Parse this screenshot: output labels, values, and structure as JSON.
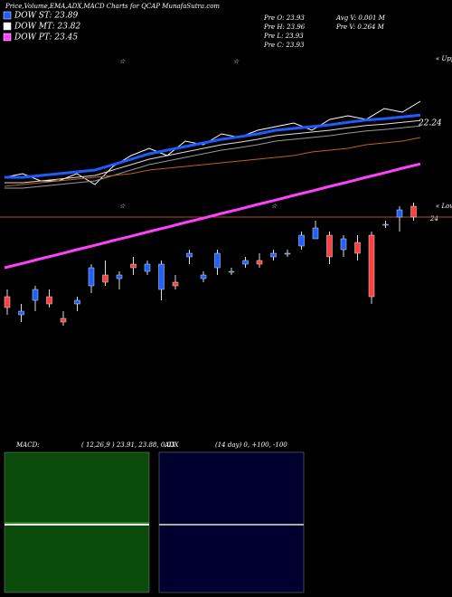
{
  "header": {
    "title": "Price,Volume,EMA,ADX,MACD Charts for QCAP MunafaSutra.com"
  },
  "legend": [
    {
      "label": "DOW ST: 23.89",
      "color": "#1e5cff"
    },
    {
      "label": "DOW MT: 23.82",
      "color": "#ffffff"
    },
    {
      "label": "DOW PT: 23.45",
      "color": "#ff40ff"
    }
  ],
  "quote": [
    "Pre  O: 23.93",
    "Pre  H: 23.96",
    "Pre  L: 23.93",
    "Pre  C: 23.93",
    "Avg V: 0.001  M",
    "Pre  V: 0.264  M"
  ],
  "chart_data": {
    "type": "candlestick",
    "ylim": [
      18,
      26
    ],
    "hline": 21.5,
    "hline_color": "#b05020",
    "labels": {
      "upper": "« Upper",
      "level": "22.24",
      "lower": "« Lower",
      "last": "24"
    },
    "lines": [
      {
        "color": "#ffffff",
        "width": 1,
        "values": [
          22.6,
          22.7,
          22.5,
          22.5,
          22.7,
          22.4,
          22.9,
          23.2,
          23.4,
          23.2,
          23.6,
          23.5,
          23.8,
          23.7,
          23.9,
          24.0,
          24.1,
          23.9,
          24.2,
          24.3,
          24.2,
          24.5,
          24.4,
          24.7
        ]
      },
      {
        "color": "#1e5cff",
        "width": 3,
        "values": [
          22.6,
          22.6,
          22.65,
          22.7,
          22.75,
          22.8,
          22.95,
          23.1,
          23.25,
          23.35,
          23.45,
          23.55,
          23.65,
          23.72,
          23.8,
          23.9,
          23.95,
          24.0,
          24.05,
          24.12,
          24.18,
          24.22,
          24.27,
          24.32
        ]
      },
      {
        "color": "#dddddd",
        "width": 1,
        "values": [
          22.45,
          22.45,
          22.5,
          22.55,
          22.6,
          22.65,
          22.8,
          22.95,
          23.1,
          23.2,
          23.3,
          23.4,
          23.5,
          23.57,
          23.65,
          23.75,
          23.8,
          23.85,
          23.9,
          23.97,
          24.03,
          24.07,
          24.12,
          24.17
        ]
      },
      {
        "color": "#999999",
        "width": 1,
        "values": [
          22.3,
          22.3,
          22.35,
          22.4,
          22.45,
          22.5,
          22.65,
          22.8,
          22.95,
          23.05,
          23.15,
          23.25,
          23.35,
          23.42,
          23.5,
          23.6,
          23.65,
          23.7,
          23.75,
          23.82,
          23.88,
          23.92,
          23.97,
          24.02
        ]
      },
      {
        "color": "#c0601a",
        "width": 1,
        "values": [
          22.35,
          22.4,
          22.45,
          22.5,
          22.55,
          22.6,
          22.65,
          22.7,
          22.8,
          22.85,
          22.9,
          22.95,
          23.0,
          23.05,
          23.1,
          23.15,
          23.2,
          23.3,
          23.35,
          23.4,
          23.5,
          23.55,
          23.6,
          23.7
        ]
      },
      {
        "color": "#ff40ff",
        "width": 3,
        "values": [
          20.1,
          20.22,
          20.35,
          20.47,
          20.6,
          20.72,
          20.85,
          20.97,
          21.1,
          21.22,
          21.35,
          21.47,
          21.6,
          21.72,
          21.85,
          21.97,
          22.1,
          22.22,
          22.35,
          22.47,
          22.6,
          22.72,
          22.85,
          22.97
        ]
      }
    ],
    "up_color": "#2060ff",
    "down_color": "#ff4040",
    "open": [
      19.3,
      18.8,
      19.2,
      19.3,
      18.7,
      19.1,
      19.6,
      19.9,
      19.8,
      20.2,
      20.0,
      19.5,
      19.7,
      20.4,
      19.8,
      20.1,
      20.0,
      20.2,
      20.3,
      20.4,
      20.5,
      20.7,
      20.9,
      21.0,
      20.6,
      20.8,
      21.0,
      21.3,
      21.5,
      21.8
    ],
    "high": [
      19.5,
      19.1,
      19.6,
      19.5,
      18.9,
      19.3,
      20.2,
      20.3,
      20.0,
      20.4,
      20.3,
      20.3,
      19.9,
      20.6,
      20.0,
      20.6,
      20.1,
      20.4,
      20.5,
      20.6,
      20.6,
      21.1,
      21.4,
      21.1,
      21.0,
      21.0,
      21.1,
      21.4,
      21.8,
      21.9
    ],
    "low": [
      18.8,
      18.6,
      18.9,
      19.0,
      18.5,
      18.9,
      19.4,
      19.6,
      19.5,
      19.9,
      19.9,
      19.2,
      19.5,
      20.2,
      19.7,
      19.9,
      19.9,
      20.1,
      20.1,
      20.3,
      20.4,
      20.6,
      20.9,
      20.2,
      20.4,
      20.3,
      19.1,
      21.2,
      21.1,
      21.4
    ],
    "close": [
      19.0,
      18.9,
      19.5,
      19.1,
      18.6,
      19.2,
      20.1,
      19.7,
      19.9,
      20.1,
      20.2,
      20.2,
      19.6,
      20.5,
      19.9,
      20.5,
      20.0,
      20.3,
      20.2,
      20.5,
      20.5,
      21.0,
      21.2,
      20.4,
      20.9,
      20.5,
      19.3,
      21.3,
      21.7,
      21.5
    ]
  },
  "macd": {
    "label": "MACD:",
    "params": "( 12,26,9 ) 23.91, 23.88, 0.03"
  },
  "adx": {
    "label": "ADX",
    "params": "(14  day) 0, +100, -100"
  }
}
